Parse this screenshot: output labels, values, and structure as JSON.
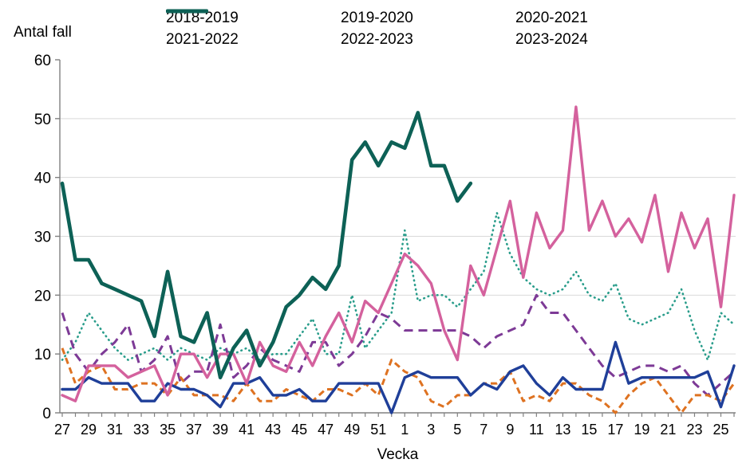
{
  "title": "Antal fall",
  "chart_data": {
    "type": "line",
    "title": "Antal fall",
    "xlabel": "Vecka",
    "ylabel": "Antal fall",
    "ylim": [
      0,
      60
    ],
    "ytick_step": 10,
    "grid": "horizontal-only",
    "legend_position": "top",
    "x_unit": "epidemiological week (27–52, then 1–26)",
    "categories": [
      "27",
      "28",
      "29",
      "30",
      "31",
      "32",
      "33",
      "34",
      "35",
      "36",
      "37",
      "38",
      "39",
      "40",
      "41",
      "42",
      "43",
      "44",
      "45",
      "46",
      "47",
      "48",
      "49",
      "50",
      "51",
      "52",
      "1",
      "2",
      "3",
      "4",
      "5",
      "6",
      "7",
      "8",
      "9",
      "10",
      "11",
      "12",
      "13",
      "14",
      "15",
      "16",
      "17",
      "18",
      "19",
      "20",
      "21",
      "22",
      "23",
      "24",
      "25",
      "26"
    ],
    "x_tick_labels_every": 2,
    "axis_color": "#808080",
    "grid_color": "#d9d9d9",
    "series": [
      {
        "name": "2018-2019",
        "color": "#2A9D8B",
        "line_style": "dotted",
        "values": [
          9,
          12,
          17,
          14,
          11,
          9,
          10,
          11,
          9,
          11,
          10,
          9,
          11,
          10,
          11,
          9,
          10,
          10,
          13,
          16,
          10,
          10,
          20,
          11,
          14,
          17,
          31,
          19,
          20,
          20,
          18,
          21,
          24,
          34,
          27,
          23,
          21,
          20,
          21,
          24,
          20,
          19,
          22,
          16,
          15,
          16,
          17,
          21,
          14,
          9,
          17,
          15
        ]
      },
      {
        "name": "2019-2020",
        "color": "#7D3A96",
        "line_style": "long-dashed",
        "values": [
          17,
          10,
          7,
          10,
          12,
          15,
          7,
          9,
          13,
          5,
          7,
          7,
          15,
          6,
          8,
          11,
          9,
          8,
          7,
          12,
          12,
          8,
          10,
          13,
          17,
          16,
          14,
          14,
          14,
          14,
          14,
          13,
          11,
          13,
          14,
          15,
          20,
          17,
          17,
          14,
          11,
          8,
          6,
          7,
          8,
          8,
          7,
          8,
          5,
          3,
          5,
          7
        ]
      },
      {
        "name": "2020-2021",
        "color": "#DE7221",
        "line_style": "dashed",
        "values": [
          11,
          5,
          7,
          8,
          4,
          4,
          5,
          5,
          3,
          6,
          3,
          3,
          3,
          2,
          5,
          2,
          2,
          4,
          3,
          2,
          4,
          4,
          3,
          5,
          3,
          9,
          7,
          6,
          2,
          1,
          3,
          3,
          5,
          5,
          7,
          2,
          3,
          2,
          5,
          5,
          3,
          2,
          0,
          3,
          5,
          6,
          3,
          0,
          3,
          3,
          2,
          5
        ]
      },
      {
        "name": "2021-2022",
        "color": "#1F3F99",
        "line_style": "solid",
        "values": [
          4,
          4,
          6,
          5,
          5,
          5,
          2,
          2,
          5,
          4,
          4,
          3,
          1,
          5,
          5,
          6,
          3,
          3,
          4,
          2,
          2,
          5,
          5,
          5,
          5,
          0,
          6,
          7,
          6,
          6,
          6,
          3,
          5,
          4,
          7,
          8,
          5,
          3,
          6,
          4,
          4,
          4,
          12,
          5,
          6,
          6,
          6,
          6,
          6,
          7,
          1,
          8
        ]
      },
      {
        "name": "2022-2023",
        "color": "#D4619D",
        "line_style": "solid",
        "values": [
          3,
          2,
          8,
          8,
          8,
          6,
          7,
          8,
          3,
          10,
          10,
          6,
          10,
          10,
          5,
          12,
          8,
          7,
          12,
          8,
          13,
          17,
          12,
          19,
          17,
          22,
          27,
          25,
          22,
          14,
          9,
          25,
          20,
          28,
          36,
          23,
          34,
          28,
          31,
          52,
          31,
          36,
          30,
          33,
          29,
          37,
          24,
          34,
          28,
          33,
          18,
          37
        ]
      },
      {
        "name": "2023-2024",
        "color": "#0D6156",
        "line_style": "solid-thick",
        "values": [
          39,
          26,
          26,
          22,
          21,
          20,
          19,
          13,
          24,
          13,
          12,
          17,
          6,
          11,
          14,
          8,
          12,
          18,
          20,
          23,
          21,
          25,
          43,
          46,
          42,
          46,
          45,
          51,
          42,
          42,
          36,
          39,
          null,
          null,
          null,
          null,
          null,
          null,
          null,
          null,
          null,
          null,
          null,
          null,
          null,
          null,
          null,
          null,
          null,
          null,
          null,
          null
        ]
      }
    ]
  }
}
